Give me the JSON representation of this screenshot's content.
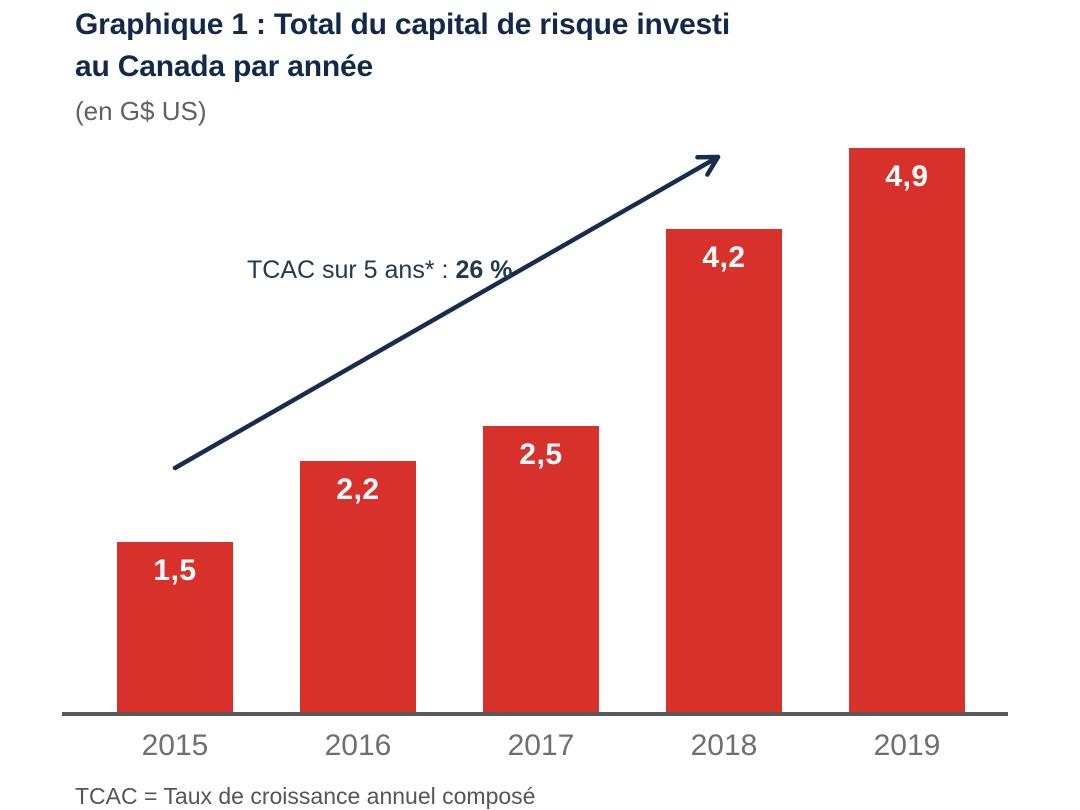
{
  "header": {
    "title_line1": "Graphique 1 : Total du capital de risque investi",
    "title_line2": "au Canada par année",
    "subtitle": "(en G$ US)"
  },
  "annotation": {
    "label": "TCAC sur 5 ans* :",
    "value": "26 %"
  },
  "footnote": "TCAC = Taux de croissance annuel composé",
  "chart_data": {
    "type": "bar",
    "title": "Graphique 1 : Total du capital de risque investi au Canada par année",
    "subtitle": "(en G$ US)",
    "categories": [
      "2015",
      "2016",
      "2017",
      "2018",
      "2019"
    ],
    "values": [
      1.5,
      2.2,
      2.5,
      4.2,
      4.9
    ],
    "value_labels": [
      "1,5",
      "2,2",
      "2,5",
      "4,2",
      "4,9"
    ],
    "xlabel": "",
    "ylabel": "",
    "unit": "G$ US",
    "ylim": [
      0,
      5
    ],
    "grid": false,
    "legend": false,
    "y_axis_visible": false,
    "annotation": "TCAC sur 5 ans* : 26 %",
    "trend_arrow": true,
    "footnote": "TCAC = Taux de croissance annuel composé"
  },
  "colors": {
    "bar": "#d8302a",
    "title": "#13294b",
    "subtitle": "#5d6065",
    "arrow": "#1a2c4e",
    "annotation": "#24384f",
    "axis_line": "#58595b",
    "tick_label": "#6e6f71",
    "value_label": "#ffffff",
    "footnote": "#55565a"
  }
}
